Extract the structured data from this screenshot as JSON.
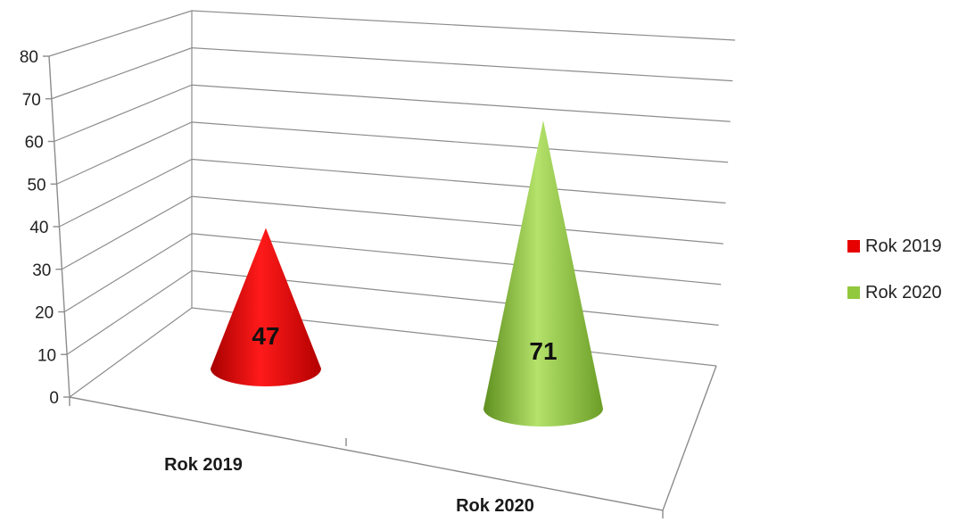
{
  "chart_data": {
    "type": "bar",
    "shape": "3d-cone",
    "categories": [
      "Rok 2019",
      "Rok 2020"
    ],
    "series": [
      {
        "name": "Rok 2019",
        "category": "Rok 2019",
        "value": 47,
        "color": "#e60000"
      },
      {
        "name": "Rok 2020",
        "category": "Rok 2020",
        "value": 71,
        "color": "#92c83e"
      }
    ],
    "ylim": [
      0,
      80
    ],
    "yticks": [
      "0",
      "10",
      "20",
      "30",
      "40",
      "50",
      "60",
      "70",
      "80"
    ],
    "grid": true,
    "legend_position": "right",
    "data_labels": [
      "47",
      "71"
    ]
  }
}
